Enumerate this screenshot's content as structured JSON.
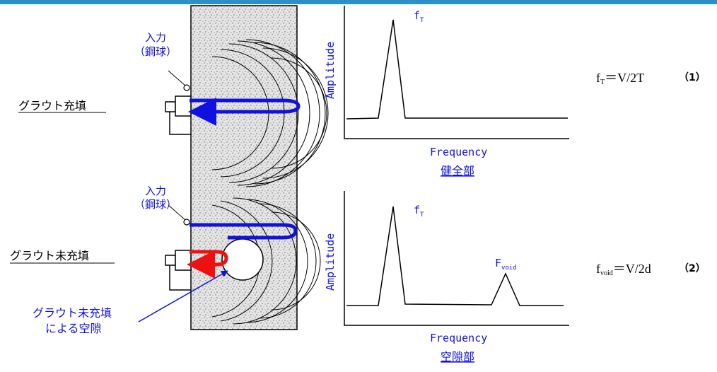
{
  "labels": {
    "filled": "グラウト充填",
    "unfilled": "グラウト未充填",
    "input_top_1": "入力",
    "input_top_2": "（鋼球）",
    "input_bottom_1": "入力",
    "input_bottom_2": "（鋼球）",
    "void_label_1": "グラウト未充填",
    "void_label_2": "による空隙"
  },
  "graphs": [
    {
      "ylabel": "Amplitude",
      "xlabel": "Frequency",
      "caption": "健全部",
      "peak1_main": "f",
      "peak1_sub": "T"
    },
    {
      "ylabel": "Amplitude",
      "xlabel": "Frequency",
      "caption": "空隙部",
      "peak1_main": "f",
      "peak1_sub": "T",
      "peak2_main": "F",
      "peak2_sub": "void"
    }
  ],
  "equations": [
    {
      "lhs_main": "f",
      "lhs_sub": "T",
      "rhs": "＝V/2T",
      "num": "（1）"
    },
    {
      "lhs_main": "f",
      "lhs_sub": "void",
      "rhs": "＝V/2d",
      "num": "（2）"
    }
  ],
  "colors": {
    "accent_bar": "#2E8FC6",
    "blue": "#1010E0",
    "red": "#EE1111",
    "concrete": "#e2e2e2"
  }
}
